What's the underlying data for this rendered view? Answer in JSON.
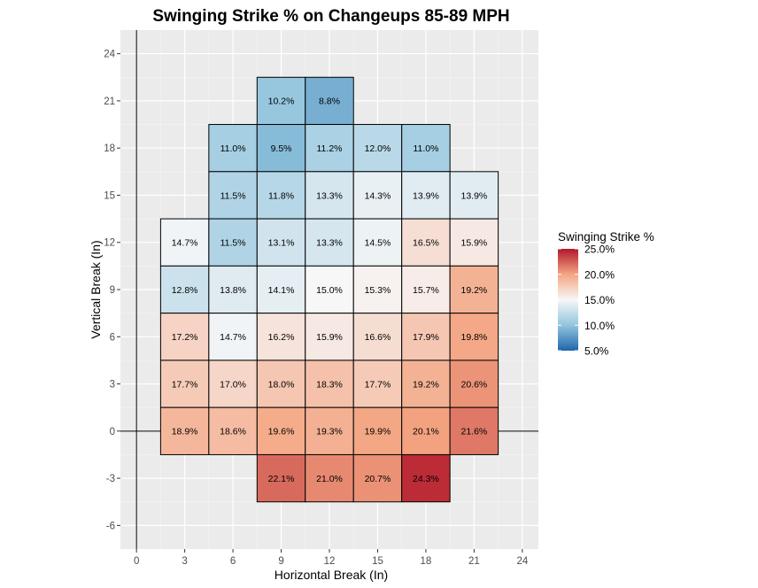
{
  "chart_data": {
    "type": "heatmap",
    "title": "Swinging Strike % on Changeups 85-89 MPH",
    "xlabel": "Horizontal Break (In)",
    "ylabel": "Vertical Break (In)",
    "xlim": [
      -1,
      25
    ],
    "ylim": [
      -7.5,
      25.5
    ],
    "x_ticks": [
      0,
      3,
      6,
      9,
      12,
      15,
      18,
      21,
      24
    ],
    "y_ticks": [
      -6,
      -3,
      0,
      3,
      6,
      9,
      12,
      15,
      18,
      21,
      24
    ],
    "x_tick_labels": [
      "0",
      "3",
      "6",
      "9",
      "12",
      "15",
      "18",
      "21",
      "24"
    ],
    "y_tick_labels": [
      "-6",
      "-3",
      "0",
      "3",
      "6",
      "9",
      "12",
      "15",
      "18",
      "21",
      "24"
    ],
    "grid": true,
    "reference_lines": {
      "x": 0,
      "y": 0
    },
    "cells": [
      {
        "x": 9,
        "y": 21,
        "value": 10.2,
        "label": "10.2%"
      },
      {
        "x": 12,
        "y": 21,
        "value": 8.8,
        "label": "8.8%"
      },
      {
        "x": 6,
        "y": 18,
        "value": 11.0,
        "label": "11.0%"
      },
      {
        "x": 9,
        "y": 18,
        "value": 9.5,
        "label": "9.5%"
      },
      {
        "x": 12,
        "y": 18,
        "value": 11.2,
        "label": "11.2%"
      },
      {
        "x": 15,
        "y": 18,
        "value": 12.0,
        "label": "12.0%"
      },
      {
        "x": 18,
        "y": 18,
        "value": 11.0,
        "label": "11.0%"
      },
      {
        "x": 6,
        "y": 15,
        "value": 11.5,
        "label": "11.5%"
      },
      {
        "x": 9,
        "y": 15,
        "value": 11.8,
        "label": "11.8%"
      },
      {
        "x": 12,
        "y": 15,
        "value": 13.3,
        "label": "13.3%"
      },
      {
        "x": 15,
        "y": 15,
        "value": 14.3,
        "label": "14.3%"
      },
      {
        "x": 18,
        "y": 15,
        "value": 13.9,
        "label": "13.9%"
      },
      {
        "x": 21,
        "y": 15,
        "value": 13.9,
        "label": "13.9%"
      },
      {
        "x": 3,
        "y": 12,
        "value": 14.7,
        "label": "14.7%"
      },
      {
        "x": 6,
        "y": 12,
        "value": 11.5,
        "label": "11.5%"
      },
      {
        "x": 9,
        "y": 12,
        "value": 13.1,
        "label": "13.1%"
      },
      {
        "x": 12,
        "y": 12,
        "value": 13.3,
        "label": "13.3%"
      },
      {
        "x": 15,
        "y": 12,
        "value": 14.5,
        "label": "14.5%"
      },
      {
        "x": 18,
        "y": 12,
        "value": 16.5,
        "label": "16.5%"
      },
      {
        "x": 21,
        "y": 12,
        "value": 15.9,
        "label": "15.9%"
      },
      {
        "x": 3,
        "y": 9,
        "value": 12.8,
        "label": "12.8%"
      },
      {
        "x": 6,
        "y": 9,
        "value": 13.8,
        "label": "13.8%"
      },
      {
        "x": 9,
        "y": 9,
        "value": 14.1,
        "label": "14.1%"
      },
      {
        "x": 12,
        "y": 9,
        "value": 15.0,
        "label": "15.0%"
      },
      {
        "x": 15,
        "y": 9,
        "value": 15.3,
        "label": "15.3%"
      },
      {
        "x": 18,
        "y": 9,
        "value": 15.7,
        "label": "15.7%"
      },
      {
        "x": 21,
        "y": 9,
        "value": 19.2,
        "label": "19.2%"
      },
      {
        "x": 3,
        "y": 6,
        "value": 17.2,
        "label": "17.2%"
      },
      {
        "x": 6,
        "y": 6,
        "value": 14.7,
        "label": "14.7%"
      },
      {
        "x": 9,
        "y": 6,
        "value": 16.2,
        "label": "16.2%"
      },
      {
        "x": 12,
        "y": 6,
        "value": 15.9,
        "label": "15.9%"
      },
      {
        "x": 15,
        "y": 6,
        "value": 16.6,
        "label": "16.6%"
      },
      {
        "x": 18,
        "y": 6,
        "value": 17.9,
        "label": "17.9%"
      },
      {
        "x": 21,
        "y": 6,
        "value": 19.8,
        "label": "19.8%"
      },
      {
        "x": 3,
        "y": 3,
        "value": 17.7,
        "label": "17.7%"
      },
      {
        "x": 6,
        "y": 3,
        "value": 17.0,
        "label": "17.0%"
      },
      {
        "x": 9,
        "y": 3,
        "value": 18.0,
        "label": "18.0%"
      },
      {
        "x": 12,
        "y": 3,
        "value": 18.3,
        "label": "18.3%"
      },
      {
        "x": 15,
        "y": 3,
        "value": 17.7,
        "label": "17.7%"
      },
      {
        "x": 18,
        "y": 3,
        "value": 19.2,
        "label": "19.2%"
      },
      {
        "x": 21,
        "y": 3,
        "value": 20.6,
        "label": "20.6%"
      },
      {
        "x": 3,
        "y": 0,
        "value": 18.9,
        "label": "18.9%"
      },
      {
        "x": 6,
        "y": 0,
        "value": 18.6,
        "label": "18.6%"
      },
      {
        "x": 9,
        "y": 0,
        "value": 19.6,
        "label": "19.6%"
      },
      {
        "x": 12,
        "y": 0,
        "value": 19.3,
        "label": "19.3%"
      },
      {
        "x": 15,
        "y": 0,
        "value": 19.9,
        "label": "19.9%"
      },
      {
        "x": 18,
        "y": 0,
        "value": 20.1,
        "label": "20.1%"
      },
      {
        "x": 21,
        "y": 0,
        "value": 21.6,
        "label": "21.6%"
      },
      {
        "x": 9,
        "y": -3,
        "value": 22.1,
        "label": "22.1%"
      },
      {
        "x": 12,
        "y": -3,
        "value": 21.0,
        "label": "21.0%"
      },
      {
        "x": 15,
        "y": -3,
        "value": 20.7,
        "label": "20.7%"
      },
      {
        "x": 18,
        "y": -3,
        "value": 24.3,
        "label": "24.3%"
      }
    ],
    "legend": {
      "title": "Swinging Strike %",
      "placement": "right",
      "range": [
        5.0,
        25.0
      ],
      "breaks": [
        25.0,
        20.0,
        15.0,
        10.0,
        5.0
      ],
      "break_labels": [
        "25.0%",
        "20.0%",
        "15.0%",
        "10.0%",
        "5.0%"
      ],
      "color_scale": [
        {
          "value": 5.0,
          "color": "#2166ac"
        },
        {
          "value": 10.0,
          "color": "#92c5de"
        },
        {
          "value": 15.0,
          "color": "#f7f7f7"
        },
        {
          "value": 20.0,
          "color": "#f4a582"
        },
        {
          "value": 25.0,
          "color": "#b2182b"
        }
      ]
    },
    "colors": {
      "panel_background": "#ebebeb",
      "grid_major": "#ffffff",
      "grid_minor": "#f5f5f5",
      "cell_border": "#000000",
      "reference_line": "#000000"
    }
  }
}
